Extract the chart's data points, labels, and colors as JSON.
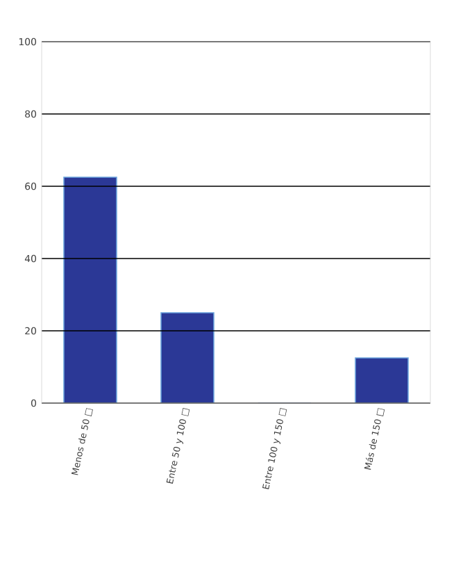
{
  "chart_data": {
    "type": "bar",
    "categories": [
      "Menos de 50 □",
      "Entre 50 y 100 □",
      "Entre 100 y 150 □",
      "Más de 150 □"
    ],
    "values": [
      62.5,
      25,
      0,
      12.5
    ],
    "color": "#2b3896",
    "ylim": [
      0,
      100
    ],
    "yticks": [
      0,
      20,
      40,
      60,
      80,
      100
    ],
    "grid": "y"
  }
}
